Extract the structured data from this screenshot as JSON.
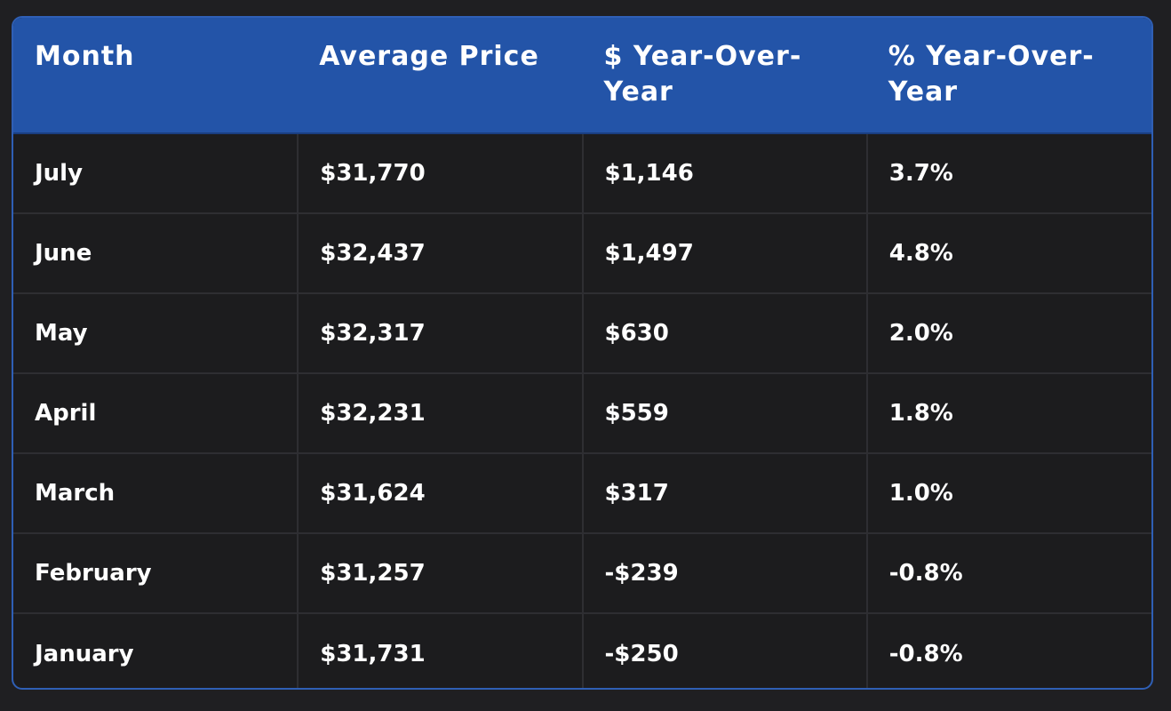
{
  "table": {
    "headers": [
      "Month",
      "Average Price",
      "$ Year-Over-Year",
      "% Year-Over-Year"
    ],
    "rows": [
      [
        "July",
        "$31,770",
        "$1,146",
        "3.7%"
      ],
      [
        "June",
        "$32,437",
        "$1,497",
        "4.8%"
      ],
      [
        "May",
        "$32,317",
        "$630",
        "2.0%"
      ],
      [
        "April",
        "$32,231",
        "$559",
        "1.8%"
      ],
      [
        "March",
        "$31,624",
        "$317",
        "1.0%"
      ],
      [
        "February",
        "$31,257",
        "-$239",
        "-0.8%"
      ],
      [
        "January",
        "$31,731",
        "-$250",
        "-0.8%"
      ]
    ]
  },
  "colors": {
    "page_background": "#1f1f22",
    "header_background": "#2354a8",
    "table_border": "#2f5fb5",
    "body_background": "#1c1c1e",
    "grid_lines": "#2e2e32",
    "text": "#ffffff"
  }
}
